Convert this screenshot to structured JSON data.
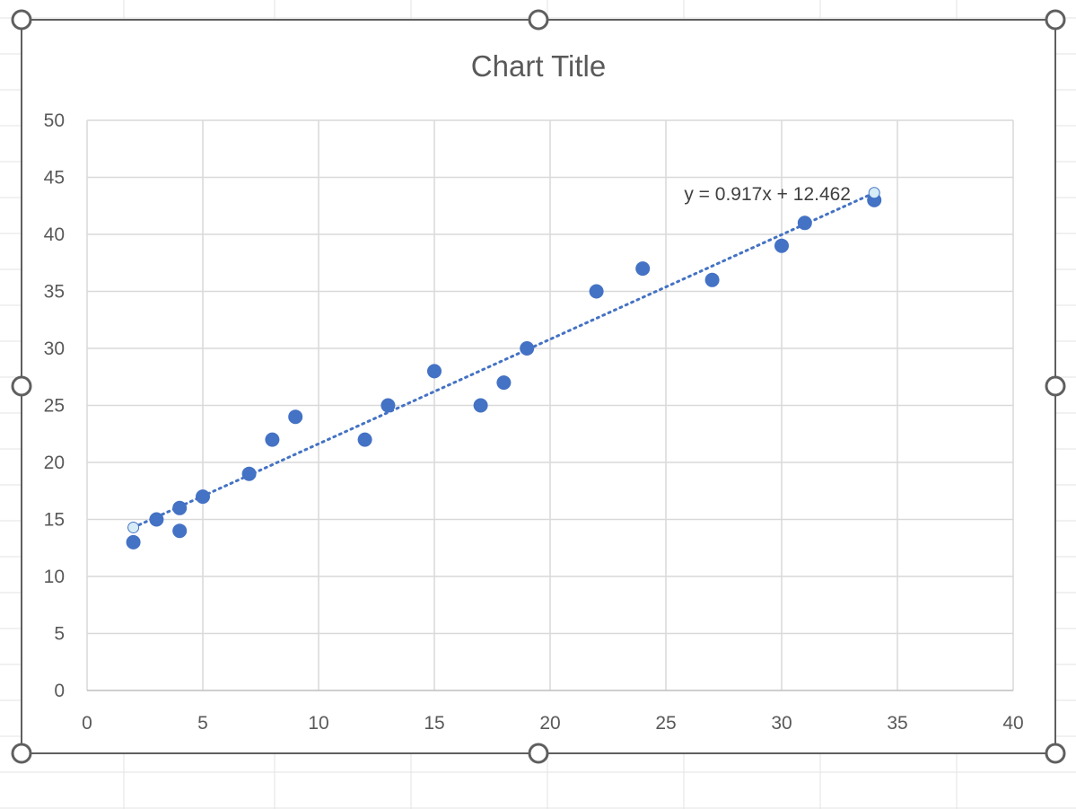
{
  "chart_data": {
    "type": "scatter",
    "title": "Chart Title",
    "xlabel": "",
    "ylabel": "",
    "xlim": [
      0,
      40
    ],
    "ylim": [
      0,
      50
    ],
    "x_ticks": [
      0,
      5,
      10,
      15,
      20,
      25,
      30,
      35,
      40
    ],
    "y_ticks": [
      0,
      5,
      10,
      15,
      20,
      25,
      30,
      35,
      40,
      45,
      50
    ],
    "grid": true,
    "legend": "none",
    "series": [
      {
        "name": "",
        "color": "#4472C4",
        "points": [
          {
            "x": 2,
            "y": 13
          },
          {
            "x": 3,
            "y": 15
          },
          {
            "x": 4,
            "y": 16
          },
          {
            "x": 4,
            "y": 14
          },
          {
            "x": 5,
            "y": 17
          },
          {
            "x": 7,
            "y": 19
          },
          {
            "x": 8,
            "y": 22
          },
          {
            "x": 9,
            "y": 24
          },
          {
            "x": 12,
            "y": 22
          },
          {
            "x": 13,
            "y": 25
          },
          {
            "x": 15,
            "y": 28
          },
          {
            "x": 17,
            "y": 25
          },
          {
            "x": 18,
            "y": 27
          },
          {
            "x": 19,
            "y": 30
          },
          {
            "x": 22,
            "y": 35
          },
          {
            "x": 24,
            "y": 37
          },
          {
            "x": 27,
            "y": 36
          },
          {
            "x": 30,
            "y": 39
          },
          {
            "x": 31,
            "y": 41
          },
          {
            "x": 34,
            "y": 43
          }
        ]
      }
    ],
    "trendline": {
      "type": "linear",
      "style": "dotted",
      "color": "#4472C4",
      "slope": 0.917,
      "intercept": 12.462,
      "x_range": [
        2,
        34
      ],
      "equation": "y = 0.917x + 12.462"
    }
  }
}
